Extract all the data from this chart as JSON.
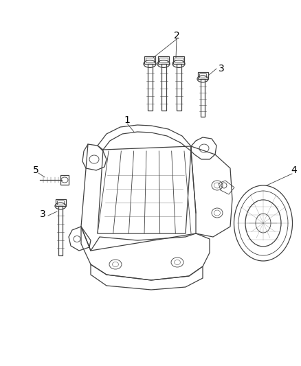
{
  "background_color": "#ffffff",
  "line_color": "#404040",
  "label_color": "#000000",
  "figsize": [
    4.38,
    5.33
  ],
  "dpi": 100,
  "label_fontsize": 10
}
